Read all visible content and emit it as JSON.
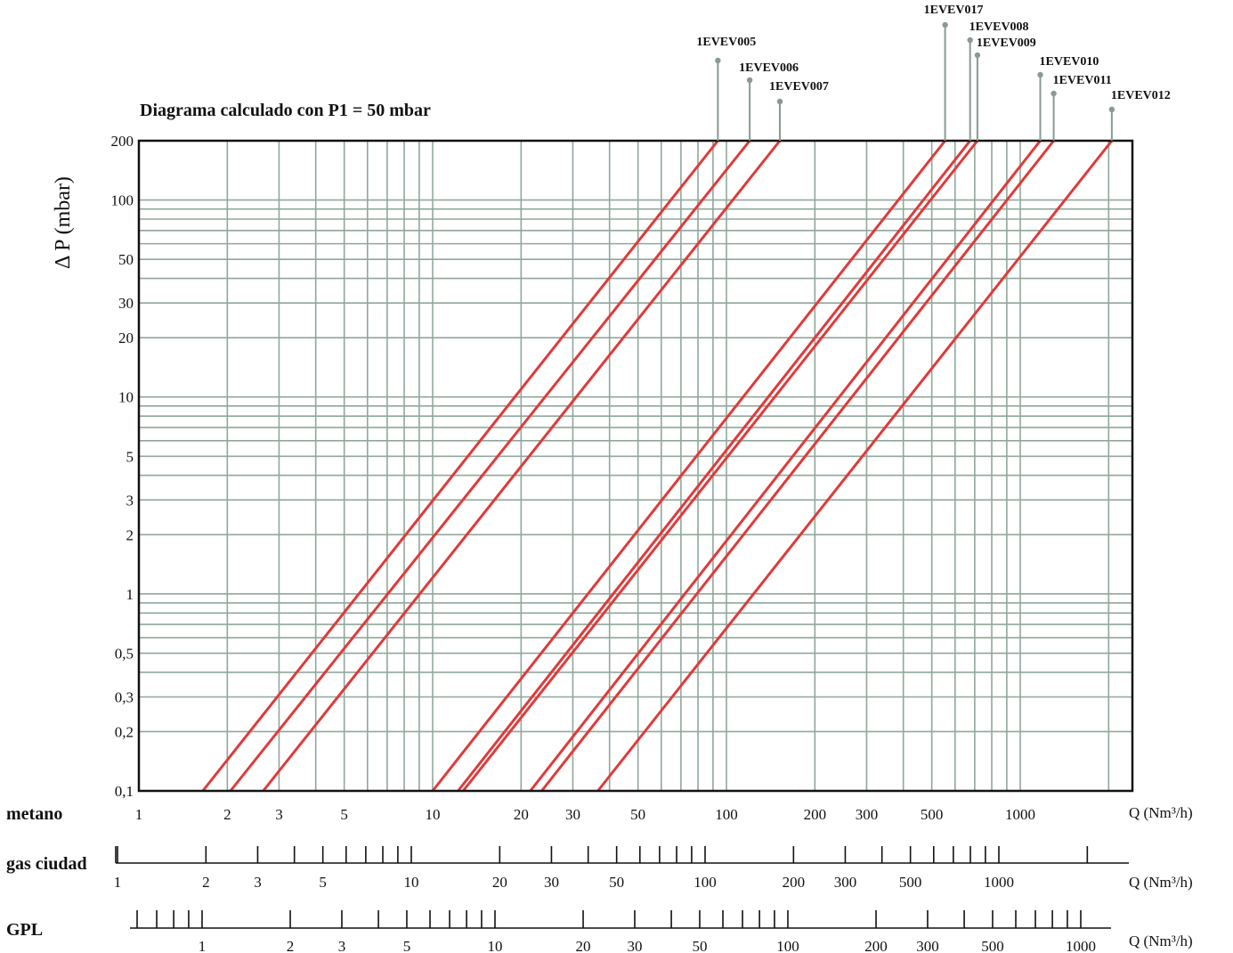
{
  "chart_data": {
    "type": "line",
    "title": "Diagrama calculado con P1 = 50 mbar",
    "ylabel": "Δ P (mbar)",
    "xlabel": "Q (Nm³/h)",
    "x_scale": "log",
    "y_scale": "log",
    "xlim": [
      1,
      2500
    ],
    "ylim": [
      0.1,
      200
    ],
    "grid": true,
    "y_ticks": [
      {
        "value": 0.1,
        "label": "0,1"
      },
      {
        "value": 0.2,
        "label": "0,2"
      },
      {
        "value": 0.3,
        "label": "0,3"
      },
      {
        "value": 0.5,
        "label": "0,5"
      },
      {
        "value": 1,
        "label": "1"
      },
      {
        "value": 2,
        "label": "2"
      },
      {
        "value": 3,
        "label": "3"
      },
      {
        "value": 5,
        "label": "5"
      },
      {
        "value": 10,
        "label": "10"
      },
      {
        "value": 20,
        "label": "20"
      },
      {
        "value": 30,
        "label": "30"
      },
      {
        "value": 50,
        "label": "50"
      },
      {
        "value": 100,
        "label": "100"
      },
      {
        "value": 200,
        "label": "200"
      }
    ],
    "series": [
      {
        "name": "1EVEV005",
        "x": [
          1.65,
          93.5
        ],
        "y": [
          0.1,
          200
        ]
      },
      {
        "name": "1EVEV006",
        "x": [
          2.05,
          120
        ],
        "y": [
          0.1,
          200
        ]
      },
      {
        "name": "1EVEV007",
        "x": [
          2.65,
          152
        ],
        "y": [
          0.1,
          200
        ]
      },
      {
        "name": "1EVEV017",
        "x": [
          10,
          555
        ],
        "y": [
          0.1,
          200
        ]
      },
      {
        "name": "1EVEV008",
        "x": [
          12.2,
          675
        ],
        "y": [
          0.1,
          200
        ]
      },
      {
        "name": "1EVEV009",
        "x": [
          12.7,
          715
        ],
        "y": [
          0.1,
          200
        ]
      },
      {
        "name": "1EVEV010",
        "x": [
          21.5,
          1170
        ],
        "y": [
          0.1,
          200
        ]
      },
      {
        "name": "1EVEV011",
        "x": [
          23.5,
          1300
        ],
        "y": [
          0.1,
          200
        ]
      },
      {
        "name": "1EVEV012",
        "x": [
          36.5,
          2050
        ],
        "y": [
          0.1,
          200
        ]
      }
    ],
    "scales": [
      {
        "name": "metano",
        "unit": "Q (Nm³/h)",
        "tick_labels": [
          {
            "value": 1,
            "label": "1"
          },
          {
            "value": 2,
            "label": "2"
          },
          {
            "value": 3,
            "label": "3"
          },
          {
            "value": 5,
            "label": "5"
          },
          {
            "value": 10,
            "label": "10"
          },
          {
            "value": 20,
            "label": "20"
          },
          {
            "value": 30,
            "label": "30"
          },
          {
            "value": 50,
            "label": "50"
          },
          {
            "value": 100,
            "label": "100"
          },
          {
            "value": 200,
            "label": "200"
          },
          {
            "value": 300,
            "label": "300"
          },
          {
            "value": 500,
            "label": "500"
          },
          {
            "value": 1000,
            "label": "1000"
          }
        ]
      },
      {
        "name": "gas ciudad",
        "unit": "Q (Nm³/h)",
        "tick_labels": [
          {
            "value": 1,
            "label": "1"
          },
          {
            "value": 2,
            "label": "2"
          },
          {
            "value": 3,
            "label": "3"
          },
          {
            "value": 5,
            "label": "5"
          },
          {
            "value": 10,
            "label": "10"
          },
          {
            "value": 20,
            "label": "20"
          },
          {
            "value": 30,
            "label": "30"
          },
          {
            "value": 50,
            "label": "50"
          },
          {
            "value": 100,
            "label": "100"
          },
          {
            "value": 200,
            "label": "200"
          },
          {
            "value": 300,
            "label": "300"
          },
          {
            "value": 500,
            "label": "500"
          },
          {
            "value": 1000,
            "label": "1000"
          }
        ]
      },
      {
        "name": "GPL",
        "unit": "Q (Nm³/h)",
        "tick_labels": [
          {
            "value": 1,
            "label": "1"
          },
          {
            "value": 2,
            "label": "2"
          },
          {
            "value": 3,
            "label": "3"
          },
          {
            "value": 5,
            "label": "5"
          },
          {
            "value": 10,
            "label": "10"
          },
          {
            "value": 20,
            "label": "20"
          },
          {
            "value": 30,
            "label": "30"
          },
          {
            "value": 50,
            "label": "50"
          },
          {
            "value": 100,
            "label": "100"
          },
          {
            "value": 200,
            "label": "200"
          },
          {
            "value": 300,
            "label": "300"
          },
          {
            "value": 500,
            "label": "500"
          },
          {
            "value": 1000,
            "label": "1000"
          }
        ]
      }
    ],
    "colors": {
      "line": "#e03a3a",
      "grid": "#8fa89a",
      "frame": "#111111",
      "leader": "#8a9a92"
    }
  }
}
